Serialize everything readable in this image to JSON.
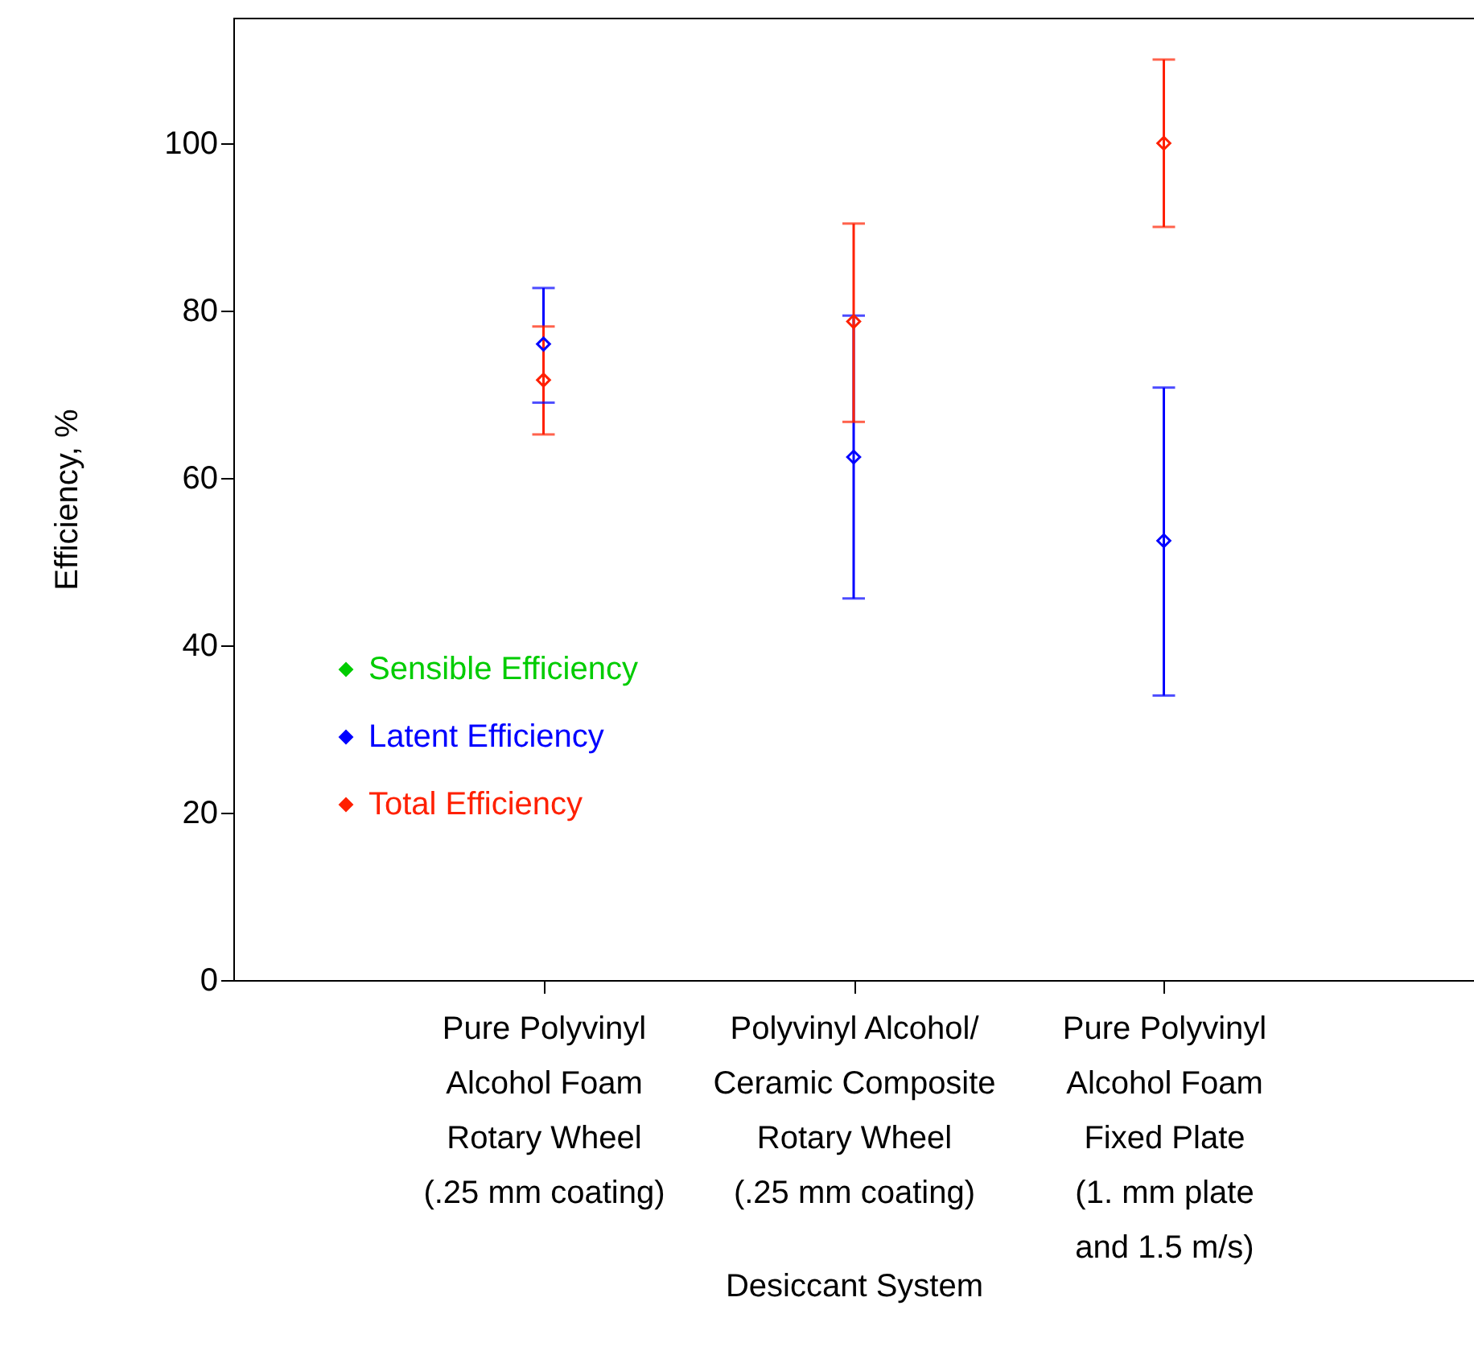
{
  "chart_data": {
    "type": "scatter",
    "xlabel": "Desiccant System",
    "ylabel": "Efficiency,  %",
    "categories": [
      "Pure Polyvinyl\nAlcohol Foam\nRotary Wheel\n(.25 mm coating)",
      "Polyvinyl Alcohol/\nCeramic Composite\nRotary Wheel\n(.25 mm coating)",
      "Pure Polyvinyl\nAlcohol Foam\nFixed Plate\n(1. mm plate\nand 1.5 m/s)"
    ],
    "series": [
      {
        "name": "Sensible Efficiency",
        "color": "#00cc00",
        "values": [
          null,
          null,
          null
        ],
        "errors": [
          null,
          null,
          null
        ]
      },
      {
        "name": "Latent Efficiency",
        "color": "#0000ff",
        "values": [
          76,
          62.5,
          52.5
        ],
        "errors": [
          [
            69,
            82.7
          ],
          [
            45.6,
            79.4
          ],
          [
            34,
            70.8
          ]
        ]
      },
      {
        "name": "Total Efficiency",
        "color": "#ff2000",
        "values": [
          71.7,
          78.7,
          100
        ],
        "errors": [
          [
            65.2,
            78.1
          ],
          [
            66.7,
            90.4
          ],
          [
            90,
            110
          ]
        ]
      }
    ],
    "ylim": [
      0,
      115
    ],
    "yticks": [
      0,
      20,
      40,
      60,
      80,
      100
    ],
    "marker": "diamond",
    "legend": "bottom left"
  }
}
